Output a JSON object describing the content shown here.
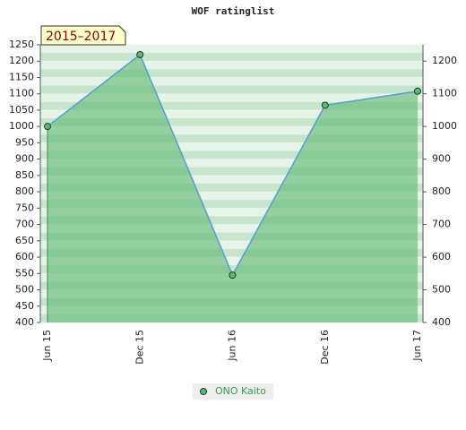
{
  "chart_data": {
    "type": "line",
    "title": "WOF ratinglist",
    "annotation": "2015–2017",
    "categories": [
      "Jun 15",
      "Dec 15",
      "Jun 16",
      "Dec 16",
      "Jun 17"
    ],
    "series": [
      {
        "name": "ONO Kaito",
        "color": "#5b9bd5",
        "marker_color": "#5fb878",
        "fill": "#5cb870",
        "values": [
          1000,
          1220,
          545,
          1065,
          1108
        ]
      }
    ],
    "ylim": [
      400,
      1250
    ],
    "yticks": [
      400,
      450,
      500,
      550,
      600,
      650,
      700,
      750,
      800,
      850,
      900,
      950,
      1000,
      1050,
      1100,
      1150,
      1200,
      1250
    ],
    "y2lim": [
      400,
      1250
    ],
    "y2ticks": [
      400,
      500,
      600,
      700,
      800,
      900,
      1000,
      1100,
      1200
    ],
    "grid": true,
    "legend": "bottom"
  }
}
